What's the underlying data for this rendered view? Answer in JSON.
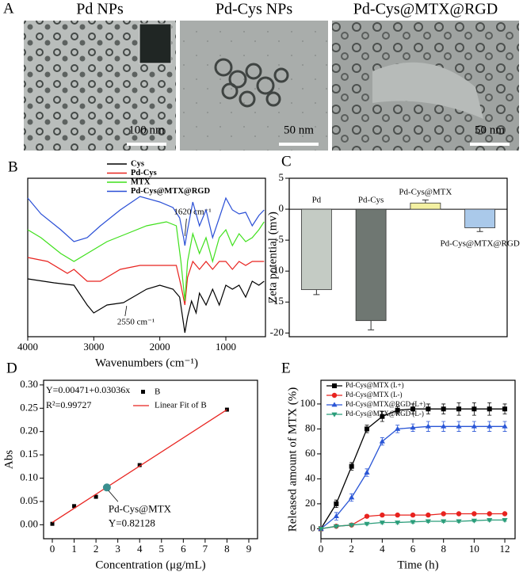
{
  "images": {
    "label": "A",
    "panels": [
      {
        "title": "Pd NPs",
        "scale": "100 nm"
      },
      {
        "title": "Pd-Cys NPs",
        "scale": "50 nm"
      },
      {
        "title": "Pd-Cys@MTX@RGD",
        "scale": "50 nm"
      }
    ]
  },
  "chart_data": [
    {
      "type": "line",
      "label": "B",
      "xlabel": "Wavenumbers (cm⁻¹)",
      "xlim": [
        4000,
        400
      ],
      "xticks": [
        4000,
        3000,
        2000,
        1000
      ],
      "ylim": [
        0,
        100
      ],
      "legend": "top",
      "annotations": [
        {
          "text": "1620 cm⁻¹",
          "x": 1620
        },
        {
          "text": "2550 cm⁻¹",
          "x": 2550
        }
      ],
      "series": [
        {
          "name": "Cys",
          "color": "#000000",
          "x": [
            4000,
            3600,
            3300,
            3100,
            3000,
            2800,
            2550,
            2200,
            2000,
            1800,
            1700,
            1620,
            1580,
            1520,
            1450,
            1400,
            1300,
            1200,
            1100,
            1000,
            900,
            800,
            700,
            600,
            500,
            420
          ],
          "values": [
            36.5,
            34,
            32.5,
            20,
            15,
            20,
            21.5,
            30,
            32.5,
            30,
            25,
            2.5,
            12.5,
            22.5,
            15,
            27.5,
            20,
            30,
            20,
            32.5,
            30,
            32.5,
            25,
            35,
            32.5,
            35
          ]
        },
        {
          "name": "Pd-Cys",
          "color": "#e8231f",
          "x": [
            4000,
            3700,
            3400,
            3300,
            3100,
            2900,
            2600,
            2300,
            2000,
            1750,
            1680,
            1620,
            1580,
            1500,
            1400,
            1300,
            1200,
            1100,
            1000,
            900,
            800,
            700,
            600,
            500,
            420
          ],
          "values": [
            50,
            47.5,
            40,
            42.5,
            35,
            35,
            42.5,
            45,
            45,
            45,
            32.5,
            20,
            37.5,
            47.5,
            42.5,
            47.5,
            42.5,
            47.5,
            47.5,
            42.5,
            47.5,
            45,
            47.5,
            47.5,
            47.5
          ]
        },
        {
          "name": "MTX",
          "color": "#3fe01c",
          "x": [
            4000,
            3800,
            3500,
            3300,
            3100,
            2800,
            2500,
            2200,
            1900,
            1750,
            1680,
            1620,
            1580,
            1500,
            1400,
            1300,
            1200,
            1100,
            1000,
            900,
            800,
            700,
            600,
            500,
            420
          ],
          "values": [
            67.5,
            62.5,
            52.5,
            47.5,
            52.5,
            60,
            65,
            70,
            72.5,
            70,
            47.5,
            22.5,
            47.5,
            65,
            52.5,
            62.5,
            47.5,
            62.5,
            67.5,
            57.5,
            65,
            60,
            62.5,
            67.5,
            72.5
          ]
        },
        {
          "name": "Pd-Cys@MTX@RGD",
          "color": "#2a4fd6",
          "x": [
            4000,
            3800,
            3500,
            3300,
            3100,
            2900,
            2600,
            2300,
            2000,
            1800,
            1700,
            1640,
            1620,
            1580,
            1500,
            1400,
            1300,
            1200,
            1100,
            1000,
            900,
            800,
            700,
            600,
            500,
            420
          ],
          "values": [
            87.5,
            77.5,
            67.5,
            60,
            62.5,
            70,
            80,
            88.5,
            85,
            81.5,
            75,
            62.5,
            57.5,
            67.5,
            85,
            70,
            80,
            62.5,
            75,
            87.5,
            80,
            77.5,
            78.5,
            70,
            76.5,
            80
          ]
        }
      ]
    },
    {
      "type": "bar",
      "label": "C",
      "ylabel": "Zeta potential (mv)",
      "categories": [
        "Pd",
        "Pd-Cys",
        "Pd-Cys@MTX",
        "Pd-Cys@MTX@RGD"
      ],
      "values": [
        -13,
        -18,
        1,
        -3
      ],
      "errors": [
        0.8,
        1.5,
        0.5,
        0.6
      ],
      "colors": [
        "#c4cbc4",
        "#6f7772",
        "#f4f1a2",
        "#aac9ea"
      ],
      "ylim": [
        -20.6,
        5
      ],
      "yticks": [
        5,
        0,
        -5,
        -10,
        -15,
        -20
      ]
    },
    {
      "type": "scatter",
      "label": "D",
      "xlabel": "Concentration (μg/mL)",
      "ylabel": "Abs",
      "xlim": [
        -0.4,
        9.4
      ],
      "xticks": [
        0,
        1,
        2,
        3,
        4,
        5,
        6,
        7,
        8,
        9
      ],
      "ylim": [
        -0.03,
        0.31
      ],
      "yticks": [
        {
          "value": 0,
          "label": "0.00"
        },
        0.05,
        {
          "value": 0.1,
          "label": "0.10"
        },
        0.15,
        {
          "value": 0.2,
          "label": "0.20"
        },
        0.25,
        {
          "value": 0.3,
          "label": "0.30"
        }
      ],
      "equation": "Y=0.00471+0.03036x",
      "r2": "R²=0.99727",
      "series": [
        {
          "name": "B",
          "color": "#000000",
          "x": [
            0,
            1,
            2,
            4,
            8
          ],
          "values": [
            0.002,
            0.04,
            0.06,
            0.128,
            0.247
          ]
        },
        {
          "name": "Linear Fit of B",
          "color": "#e8231f",
          "x": [
            0,
            8
          ],
          "values": [
            0.005,
            0.247
          ]
        }
      ],
      "highlight": {
        "x": 2.5,
        "value": 0.08,
        "label": "Pd-Cys@MTX",
        "text": "Y=0.82128",
        "color": "#3a8f8f"
      }
    },
    {
      "type": "line",
      "label": "E",
      "xlabel": "Time (h)",
      "ylabel": "Released amount of MTX (%)",
      "xlim": [
        0,
        12.67
      ],
      "xticks": [
        0,
        2,
        4,
        6,
        8,
        10,
        12
      ],
      "ylim": [
        -8,
        119
      ],
      "yticks": [
        0,
        20,
        40,
        60,
        80,
        100
      ],
      "legend": "upper left",
      "series": [
        {
          "name": "Pd-Cys@MTX (L+)",
          "color": "#000000",
          "marker": "square",
          "x": [
            0,
            1,
            2,
            3,
            4,
            5,
            6,
            7,
            8,
            9,
            10,
            11,
            12
          ],
          "values": [
            0,
            20,
            50,
            80,
            90,
            95,
            96,
            96,
            96,
            96,
            96,
            96,
            96
          ],
          "errors": [
            0,
            3,
            3,
            3,
            4,
            3,
            4,
            4,
            4,
            5,
            5,
            5,
            4
          ]
        },
        {
          "name": "Pd-Cys@MTX (L-)",
          "color": "#e8231f",
          "marker": "circle",
          "x": [
            0,
            1,
            2,
            3,
            4,
            5,
            6,
            7,
            8,
            9,
            10,
            11,
            12
          ],
          "values": [
            0,
            2,
            3,
            10,
            11,
            11,
            11,
            11,
            12,
            12,
            12,
            12,
            12
          ],
          "errors": [
            0,
            1,
            1,
            1,
            1,
            1,
            1,
            1,
            1,
            1,
            1,
            1,
            1
          ]
        },
        {
          "name": "Pd-Cys@MTX@RGD (L+)",
          "color": "#2a56d6",
          "marker": "triangle",
          "x": [
            0,
            1,
            2,
            3,
            4,
            5,
            6,
            7,
            8,
            9,
            10,
            11,
            12
          ],
          "values": [
            0,
            10,
            25,
            45,
            70,
            80,
            81,
            82,
            82,
            82,
            82,
            82,
            82
          ],
          "errors": [
            0,
            3,
            3,
            3,
            3,
            3,
            3,
            4,
            4,
            4,
            4,
            4,
            4
          ]
        },
        {
          "name": "Pd-Cys@MTX@RGD (L-)",
          "color": "#2a9d7a",
          "marker": "triangle-down",
          "x": [
            0,
            1,
            2,
            3,
            4,
            5,
            6,
            7,
            8,
            9,
            10,
            11,
            12
          ],
          "values": [
            0,
            2,
            3,
            4,
            5,
            5,
            5.5,
            6,
            6,
            6,
            6.5,
            7,
            7
          ],
          "errors": [
            0,
            1,
            1,
            1,
            1,
            1,
            1,
            1,
            1,
            1,
            1,
            1,
            1
          ]
        }
      ]
    }
  ]
}
